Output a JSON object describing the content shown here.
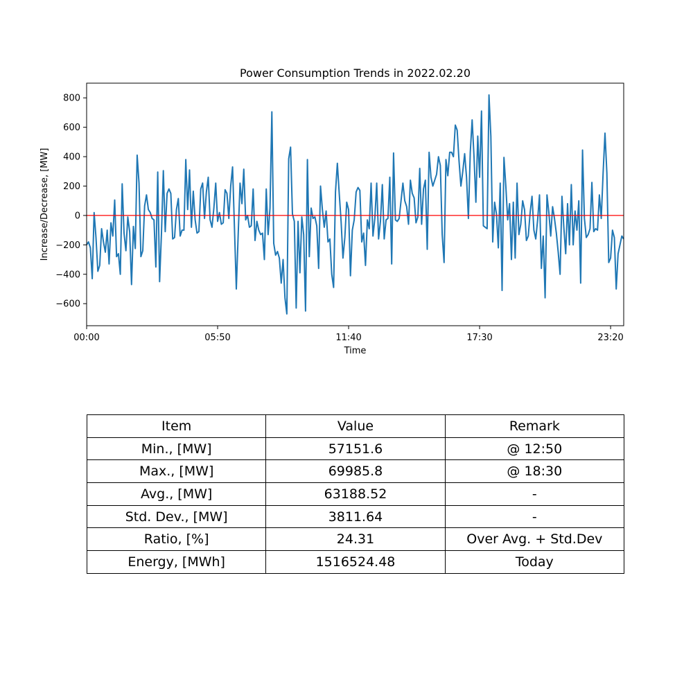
{
  "chart_data": {
    "type": "line",
    "title": "Power Consumption Trends in 2022.02.20",
    "xlabel": "Time",
    "ylabel": "Increase/Decrease, [MW]",
    "x_tick_labels": [
      "00:00",
      "05:50",
      "11:40",
      "17:30",
      "23:20"
    ],
    "x_tick_minutes": [
      0,
      350,
      700,
      1050,
      1400
    ],
    "x_interval_minutes": 5,
    "xlim_minutes": [
      0,
      1435
    ],
    "y_ticks": [
      -600,
      -400,
      -200,
      0,
      200,
      400,
      600,
      800
    ],
    "ylim": [
      -750,
      900
    ],
    "grid": false,
    "series": [
      {
        "color": "#1f77b4",
        "values": [
          -200,
          -180,
          -220,
          -430,
          20,
          -150,
          -380,
          -340,
          -90,
          -180,
          -250,
          -100,
          -330,
          -50,
          -140,
          105,
          -280,
          -260,
          -400,
          215,
          -120,
          -240,
          -10,
          -110,
          -470,
          -75,
          -225,
          410,
          220,
          -280,
          -240,
          65,
          140,
          40,
          20,
          -20,
          -30,
          -350,
          295,
          -450,
          -120,
          305,
          -110,
          150,
          180,
          150,
          -160,
          -150,
          40,
          115,
          -140,
          -100,
          -100,
          380,
          40,
          310,
          -80,
          165,
          -30,
          -120,
          -110,
          180,
          220,
          -20,
          160,
          260,
          -30,
          -80,
          50,
          220,
          -40,
          20,
          -60,
          -50,
          175,
          150,
          -20,
          200,
          330,
          -80,
          -500,
          -130,
          220,
          80,
          315,
          -30,
          0,
          -80,
          -70,
          180,
          -170,
          -40,
          -100,
          -130,
          -120,
          -300,
          180,
          -130,
          50,
          705,
          -190,
          -270,
          -245,
          -290,
          -460,
          -300,
          -560,
          -670,
          385,
          465,
          10,
          -40,
          -630,
          -40,
          -390,
          -10,
          -130,
          -650,
          380,
          -280,
          50,
          -20,
          -10,
          -70,
          -360,
          200,
          40,
          -80,
          30,
          -180,
          -160,
          -400,
          -490,
          160,
          355,
          150,
          -40,
          -290,
          -150,
          90,
          40,
          -410,
          -100,
          -30,
          160,
          190,
          170,
          -180,
          -120,
          -340,
          -30,
          -90,
          220,
          -140,
          -20,
          220,
          -160,
          -40,
          210,
          -160,
          -30,
          -20,
          260,
          -330,
          425,
          -30,
          -40,
          -20,
          100,
          220,
          100,
          60,
          -60,
          240,
          150,
          120,
          -50,
          -10,
          320,
          -60,
          180,
          240,
          -230,
          430,
          260,
          200,
          240,
          280,
          400,
          340,
          -130,
          -320,
          380,
          270,
          430,
          430,
          400,
          615,
          580,
          370,
          200,
          300,
          420,
          260,
          -20,
          430,
          650,
          400,
          90,
          540,
          260,
          710,
          -70,
          -80,
          -90,
          820,
          540,
          -180,
          90,
          10,
          -220,
          220,
          -510,
          395,
          200,
          -30,
          80,
          -300,
          90,
          -290,
          220,
          -130,
          -60,
          100,
          40,
          -170,
          -140,
          20,
          130,
          -100,
          -160,
          -30,
          140,
          -360,
          -140,
          -560,
          140,
          20,
          -140,
          60,
          -20,
          -120,
          -250,
          -400,
          130,
          -80,
          -260,
          80,
          -200,
          210,
          -200,
          30,
          -100,
          100,
          -460,
          445,
          -20,
          -150,
          -130,
          -90,
          225,
          -110,
          -90,
          -100,
          140,
          -20,
          290,
          560,
          290,
          -320,
          -290,
          -100,
          -150,
          -500,
          -260,
          -200,
          -140,
          -160
        ]
      }
    ],
    "reference_line": {
      "y": 0,
      "color": "#ff0000"
    }
  },
  "stats_table": {
    "headers": [
      "Item",
      "Value",
      "Remark"
    ],
    "rows": [
      [
        "Min., [MW]",
        "57151.6",
        "@ 12:50"
      ],
      [
        "Max., [MW]",
        "69985.8",
        "@ 18:30"
      ],
      [
        "Avg., [MW]",
        "63188.52",
        "-"
      ],
      [
        "Std. Dev., [MW]",
        "3811.64",
        "-"
      ],
      [
        "Ratio, [%]",
        "24.31",
        "Over Avg. + Std.Dev"
      ],
      [
        "Energy, [MWh]",
        "1516524.48",
        "Today"
      ]
    ]
  }
}
